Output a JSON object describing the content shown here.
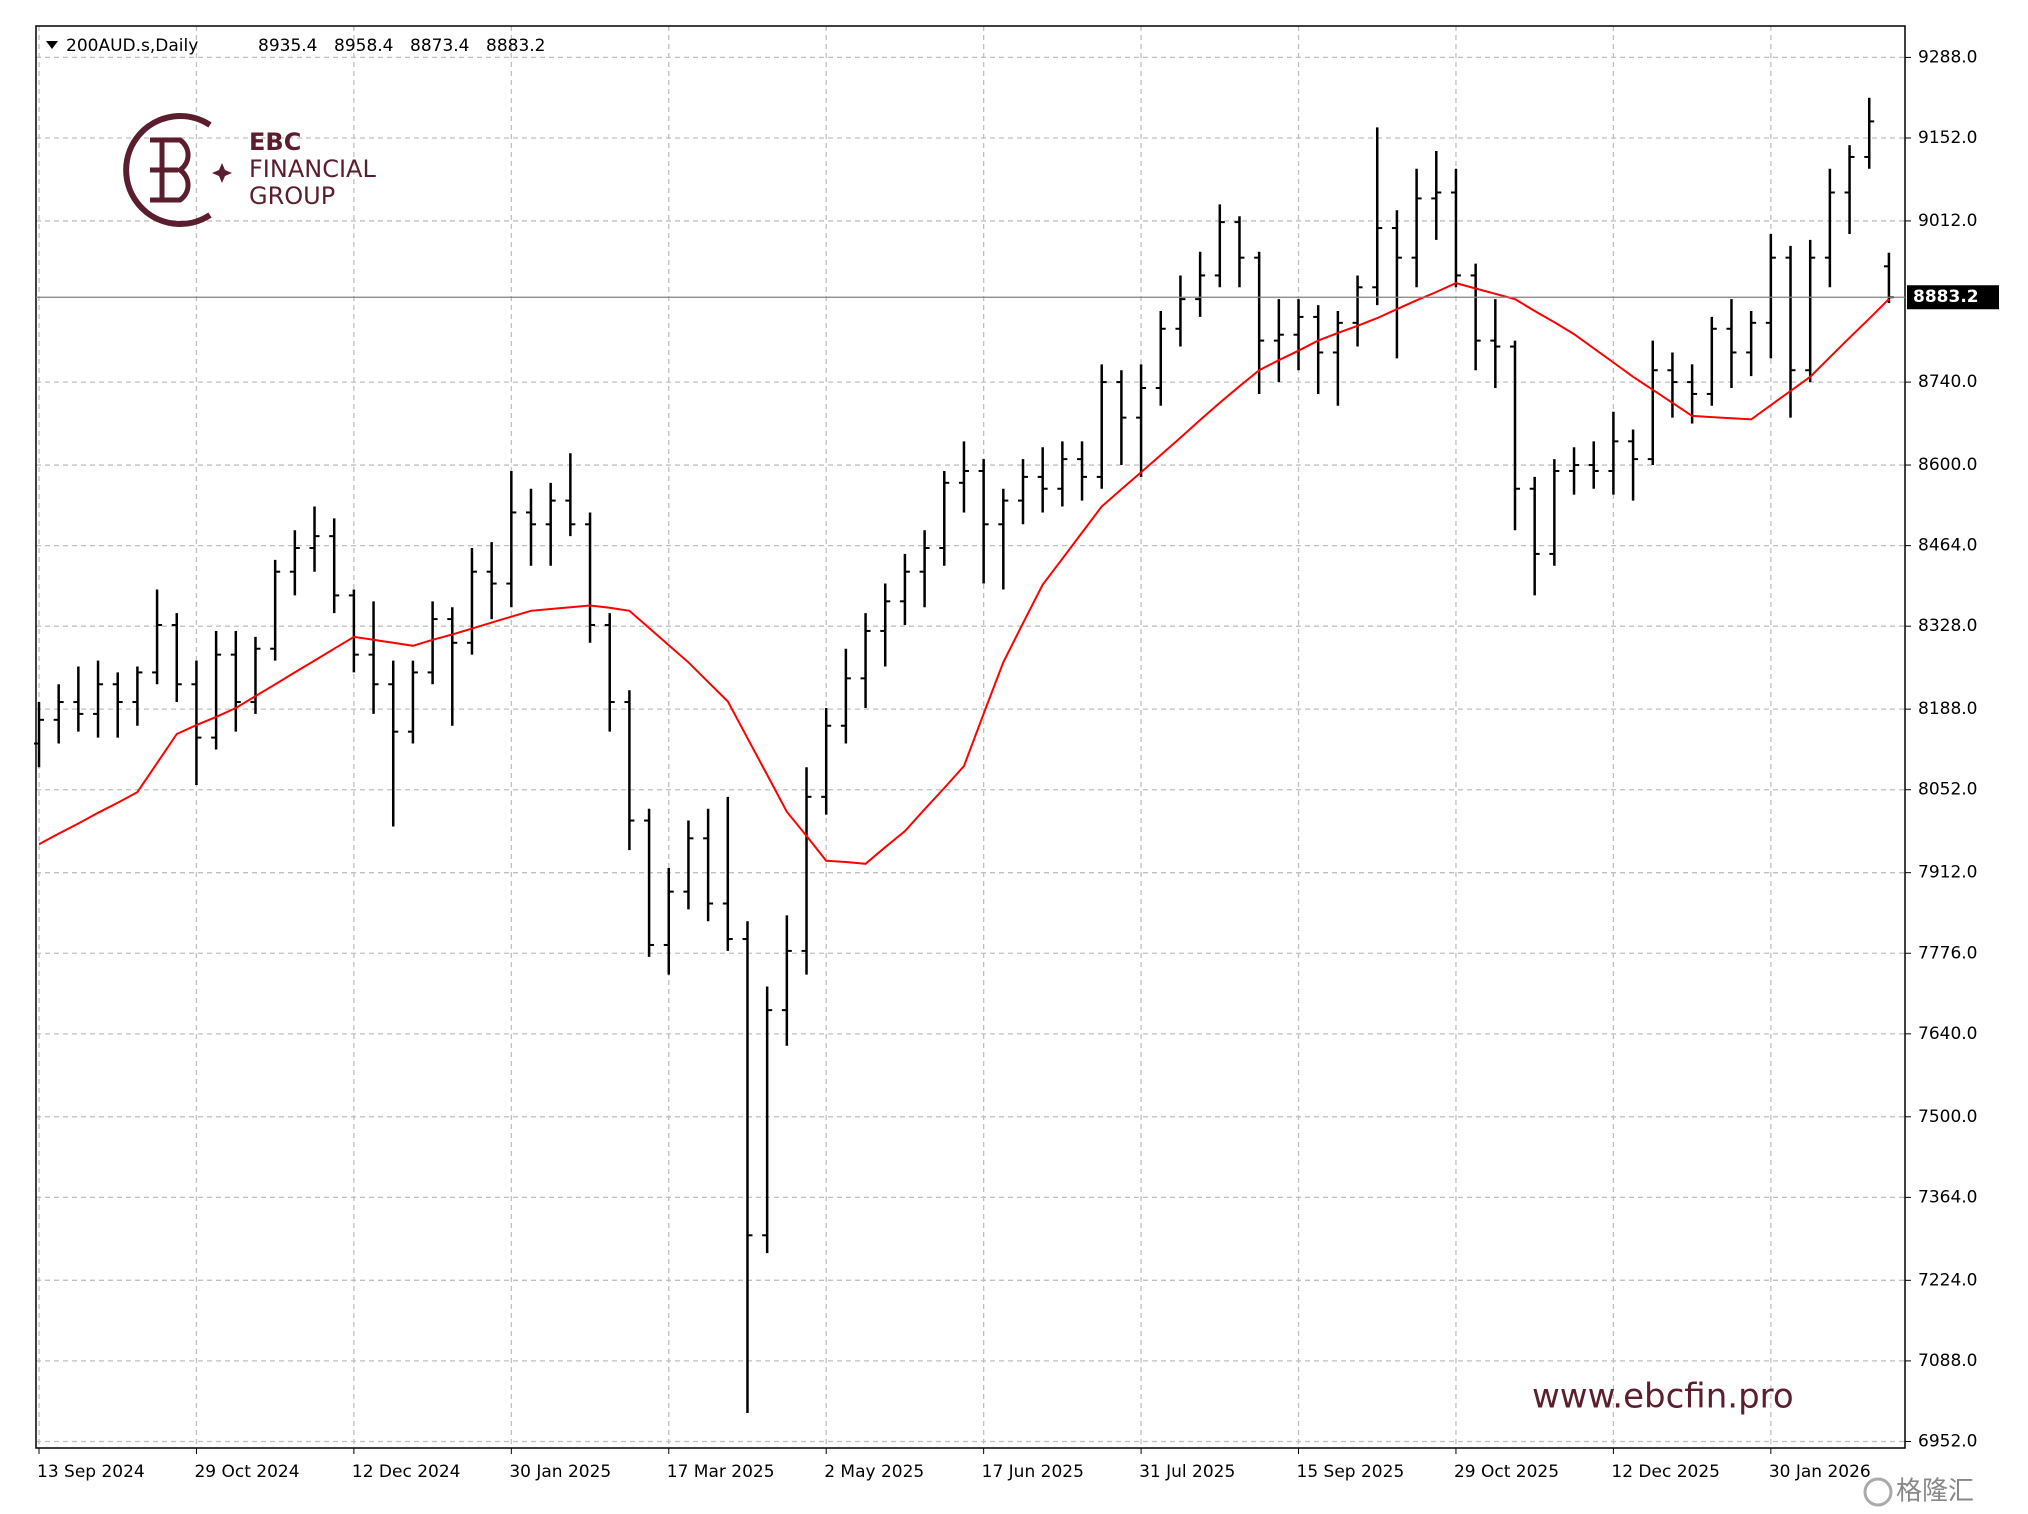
{
  "chart_data": {
    "type": "ohlc",
    "title": "200AUD.s,Daily",
    "categories": [
      "13 Sep 2024",
      null,
      null,
      null,
      null,
      null,
      null,
      null,
      "29 Oct 2024",
      null,
      null,
      null,
      null,
      null,
      null,
      null,
      "12 Dec 2024",
      null,
      null,
      null,
      null,
      null,
      null,
      null,
      "30 Jan 2025",
      null,
      null,
      null,
      null,
      null,
      null,
      null,
      "17 Mar 2025",
      null,
      null,
      null,
      null,
      null,
      null,
      null,
      "2 May 2025",
      null,
      null,
      null,
      null,
      null,
      null,
      null,
      "17 Jun 2025",
      null,
      null,
      null,
      null,
      null,
      null,
      null,
      "31 Jul 2025",
      null,
      null,
      null,
      null,
      null,
      null,
      null,
      "15 Sep 2025",
      null,
      null,
      null,
      null,
      null,
      null,
      null,
      "29 Oct 2025",
      null,
      null,
      null,
      null,
      null,
      null,
      null,
      "12 Dec 2025",
      null,
      null,
      null,
      null,
      null,
      null,
      null,
      "30 Jan 2026",
      null,
      null,
      null,
      null,
      null,
      null
    ],
    "open": [
      8130,
      8170,
      8200,
      8180,
      8230,
      8200,
      8250,
      8330,
      8230,
      8140,
      8280,
      8200,
      8290,
      8420,
      8460,
      8480,
      8380,
      8280,
      8230,
      8150,
      8250,
      8340,
      8300,
      8420,
      8400,
      8520,
      8500,
      8540,
      8500,
      8330,
      8200,
      8000,
      7790,
      7880,
      7970,
      7860,
      7800,
      7300,
      7680,
      7780,
      8040,
      8160,
      8240,
      8320,
      8370,
      8420,
      8460,
      8570,
      8590,
      8500,
      8540,
      8580,
      8560,
      8610,
      8580,
      8740,
      8680,
      8730,
      8830,
      8880,
      8920,
      9010,
      8950,
      8810,
      8820,
      8850,
      8790,
      8840,
      8900,
      9000,
      8950,
      9050,
      9060,
      8920,
      8810,
      8800,
      8560,
      8450,
      8590,
      8600,
      8590,
      8640,
      8610,
      8760,
      8740,
      8720,
      8830,
      8790,
      8840,
      8950,
      8760,
      8950,
      9060,
      9120,
      8935.4
    ],
    "high": [
      8200,
      8230,
      8260,
      8270,
      8250,
      8260,
      8390,
      8350,
      8270,
      8320,
      8320,
      8310,
      8440,
      8490,
      8530,
      8510,
      8390,
      8370,
      8270,
      8270,
      8370,
      8360,
      8460,
      8470,
      8590,
      8560,
      8570,
      8620,
      8520,
      8350,
      8220,
      8020,
      7920,
      8000,
      8020,
      8040,
      7830,
      7720,
      7840,
      8090,
      8190,
      8290,
      8350,
      8400,
      8450,
      8490,
      8590,
      8640,
      8610,
      8560,
      8610,
      8630,
      8640,
      8640,
      8770,
      8760,
      8770,
      8860,
      8920,
      8960,
      9040,
      9020,
      8960,
      8880,
      8880,
      8870,
      8860,
      8920,
      9170,
      9030,
      9100,
      9130,
      9100,
      8940,
      8880,
      8810,
      8580,
      8610,
      8630,
      8640,
      8690,
      8660,
      8810,
      8790,
      8770,
      8850,
      8880,
      8860,
      8990,
      8970,
      8980,
      9100,
      9140,
      9220,
      8958.4
    ],
    "low": [
      8090,
      8130,
      8150,
      8140,
      8140,
      8160,
      8230,
      8200,
      8060,
      8120,
      8150,
      8180,
      8270,
      8380,
      8420,
      8350,
      8250,
      8180,
      7990,
      8130,
      8230,
      8160,
      8280,
      8340,
      8360,
      8430,
      8430,
      8480,
      8300,
      8150,
      7950,
      7770,
      7740,
      7850,
      7830,
      7780,
      7000,
      7270,
      7620,
      7740,
      8010,
      8130,
      8190,
      8260,
      8330,
      8360,
      8430,
      8520,
      8400,
      8390,
      8500,
      8520,
      8530,
      8540,
      8560,
      8600,
      8580,
      8700,
      8800,
      8850,
      8900,
      8900,
      8720,
      8740,
      8760,
      8720,
      8700,
      8800,
      8870,
      8780,
      8900,
      8980,
      8900,
      8760,
      8730,
      8490,
      8380,
      8430,
      8550,
      8560,
      8550,
      8540,
      8600,
      8680,
      8670,
      8700,
      8730,
      8750,
      8780,
      8680,
      8740,
      8900,
      8990,
      9100,
      8873.4
    ],
    "close": [
      8170,
      8200,
      8180,
      8230,
      8200,
      8250,
      8330,
      8230,
      8140,
      8280,
      8200,
      8290,
      8420,
      8460,
      8480,
      8380,
      8280,
      8230,
      8150,
      8250,
      8340,
      8300,
      8420,
      8400,
      8520,
      8500,
      8540,
      8500,
      8330,
      8200,
      8000,
      7790,
      7880,
      7970,
      7860,
      7800,
      7300,
      7680,
      7780,
      8040,
      8160,
      8240,
      8320,
      8370,
      8420,
      8460,
      8570,
      8590,
      8500,
      8540,
      8580,
      8560,
      8610,
      8580,
      8740,
      8680,
      8730,
      8830,
      8880,
      8920,
      9010,
      8950,
      8810,
      8820,
      8850,
      8790,
      8840,
      8900,
      9000,
      8950,
      9050,
      9060,
      8920,
      8810,
      8800,
      8560,
      8450,
      8590,
      8600,
      8590,
      8640,
      8610,
      8760,
      8740,
      8720,
      8830,
      8790,
      8840,
      8950,
      8760,
      8950,
      9060,
      9120,
      9180,
      8883.2
    ],
    "color": "#000000",
    "ma": {
      "color": "#ff0000",
      "values": [
        7960,
        7978,
        7995,
        8013,
        8030,
        8048,
        8097,
        8146,
        8161,
        8175,
        8190,
        8210,
        8230,
        8250,
        8270,
        8290,
        8310,
        8305,
        8300,
        8295,
        8305,
        8314,
        8324,
        8334,
        8344,
        8354,
        8357,
        8360,
        8363,
        8359,
        8354,
        8325,
        8296,
        8267,
        8234,
        8201,
        8139,
        8077,
        8015,
        7974,
        7932,
        7930,
        7927,
        7955,
        7982,
        8019,
        8055,
        8092,
        8180,
        8267,
        8333,
        8398,
        8442,
        8486,
        8530,
        8559,
        8588,
        8617,
        8646,
        8676,
        8705,
        8733,
        8760,
        8777,
        8793,
        8810,
        8823,
        8835,
        8848,
        8863,
        8878,
        8892,
        8907,
        8898,
        8889,
        8880,
        8860,
        8841,
        8821,
        8797,
        8773,
        8749,
        8727,
        8705,
        8683,
        8681,
        8679,
        8677,
        8701,
        8725,
        8749,
        8782,
        8815,
        8847,
        8880
      ]
    },
    "ylim": [
      6941,
      9341
    ],
    "yticks": [
      {
        "value": 6952,
        "label": "6952.0"
      },
      {
        "value": 7088,
        "label": "7088.0"
      },
      {
        "value": 7224,
        "label": "7224.0"
      },
      {
        "value": 7364,
        "label": "7364.0"
      },
      {
        "value": 7500,
        "label": "7500.0"
      },
      {
        "value": 7640,
        "label": "7640.0"
      },
      {
        "value": 7776,
        "label": "7776.0"
      },
      {
        "value": 7912,
        "label": "7912.0"
      },
      {
        "value": 8052,
        "label": "8052.0"
      },
      {
        "value": 8188,
        "label": "8188.0"
      },
      {
        "value": 8328,
        "label": "8328.0"
      },
      {
        "value": 8464,
        "label": "8464.0"
      },
      {
        "value": 8600,
        "label": "8600.0"
      },
      {
        "value": 8740,
        "label": "8740.0"
      },
      {
        "value": 9012,
        "label": "9012.0"
      },
      {
        "value": 9152,
        "label": "9152.0"
      },
      {
        "value": 9288,
        "label": "9288.0"
      }
    ],
    "grid": true
  },
  "watermark": {
    "brand_top": "EBC",
    "brand_mid": "FINANCIAL",
    "brand_bottom": "GROUP",
    "url": "www.ebcfin.pro",
    "source": "格隆汇"
  }
}
